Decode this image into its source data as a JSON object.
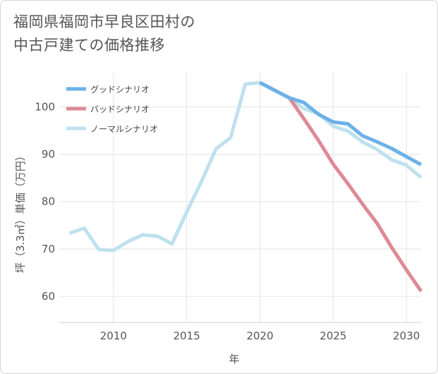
{
  "title": {
    "line1": "福岡県福岡市早良区田村の",
    "line2": "中古戸建ての価格推移"
  },
  "chart_data": {
    "type": "line",
    "title": "福岡県福岡市早良区田村の中古戸建ての価格推移",
    "xlabel": "年",
    "ylabel": "坪（3.3㎡）単価（万円）",
    "xlim": [
      2006.3,
      2031
    ],
    "ylim": [
      54.5,
      107.2
    ],
    "xticks": [
      2010,
      2015,
      2020,
      2025,
      2030
    ],
    "yticks": [
      60,
      70,
      80,
      90,
      100
    ],
    "grid": true,
    "legend_position": "top-left",
    "series": [
      {
        "name": "グッドシナリオ",
        "color": "#6cb1ea",
        "x": [
          2020,
          2021,
          2022,
          2023,
          2024,
          2025,
          2026,
          2027,
          2028,
          2029,
          2030,
          2031
        ],
        "y": [
          105.1,
          103.5,
          101.9,
          100.9,
          98.4,
          96.8,
          96.4,
          93.9,
          92.6,
          91.2,
          89.5,
          87.8
        ]
      },
      {
        "name": "バッドシナリオ",
        "color": "#de8a94",
        "x": [
          2020,
          2021,
          2022,
          2023,
          2024,
          2025,
          2026,
          2027,
          2028,
          2029,
          2030,
          2031
        ],
        "y": [
          105.1,
          103.5,
          101.9,
          97.5,
          92.9,
          87.9,
          83.8,
          79.5,
          75.4,
          70.3,
          65.6,
          61.1
        ]
      },
      {
        "name": "ノーマルシナリオ",
        "color": "#bfe1ee",
        "x": [
          2007,
          2008,
          2009,
          2010,
          2011,
          2012,
          2013,
          2014,
          2015,
          2016,
          2017,
          2018,
          2019,
          2020,
          2021,
          2022,
          2023,
          2024,
          2025,
          2026,
          2027,
          2028,
          2029,
          2030,
          2031
        ],
        "y": [
          73.3,
          74.4,
          69.9,
          69.7,
          71.6,
          73.0,
          72.7,
          71.1,
          77.8,
          84.2,
          91.1,
          93.5,
          104.8,
          105.1,
          103.5,
          101.9,
          99.6,
          98.6,
          95.9,
          94.9,
          92.6,
          91.0,
          88.8,
          87.7,
          85.1
        ]
      }
    ]
  }
}
